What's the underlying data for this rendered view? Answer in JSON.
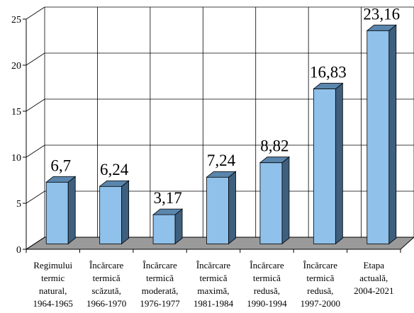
{
  "chart_data": {
    "type": "bar",
    "categories": [
      [
        "Regimului",
        "termic",
        "natural,",
        "1964-1965"
      ],
      [
        "Încărcare",
        "termică",
        "scăzută,",
        "1966-1970"
      ],
      [
        "Încărcare",
        "termică",
        "moderată,",
        "1976-1977"
      ],
      [
        "Încărcare",
        "termică",
        "maximă,",
        "1981-1984"
      ],
      [
        "Încărcare",
        "termică",
        "redusă,",
        "1990-1994"
      ],
      [
        "Încărcare",
        "termică",
        "redusă,",
        "1997-2000"
      ],
      [
        "Etapa",
        "actuală,",
        "2004-2021"
      ]
    ],
    "values": [
      6.7,
      6.24,
      3.17,
      7.24,
      8.82,
      16.83,
      23.16
    ],
    "data_labels": [
      "6,7",
      "6,24",
      "3,17",
      "7,24",
      "8,82",
      "16,83",
      "23,16"
    ],
    "ylim": [
      0,
      25
    ],
    "yticks": [
      0,
      5,
      10,
      15,
      20,
      25
    ],
    "grid": true,
    "style": "3d-bar",
    "colors": {
      "bar_front": "#8fc1ea",
      "bar_side": "#3e5f7e",
      "bar_top": "#5a86ad",
      "floor": "#9a9a9a",
      "grid": "#000000"
    }
  }
}
